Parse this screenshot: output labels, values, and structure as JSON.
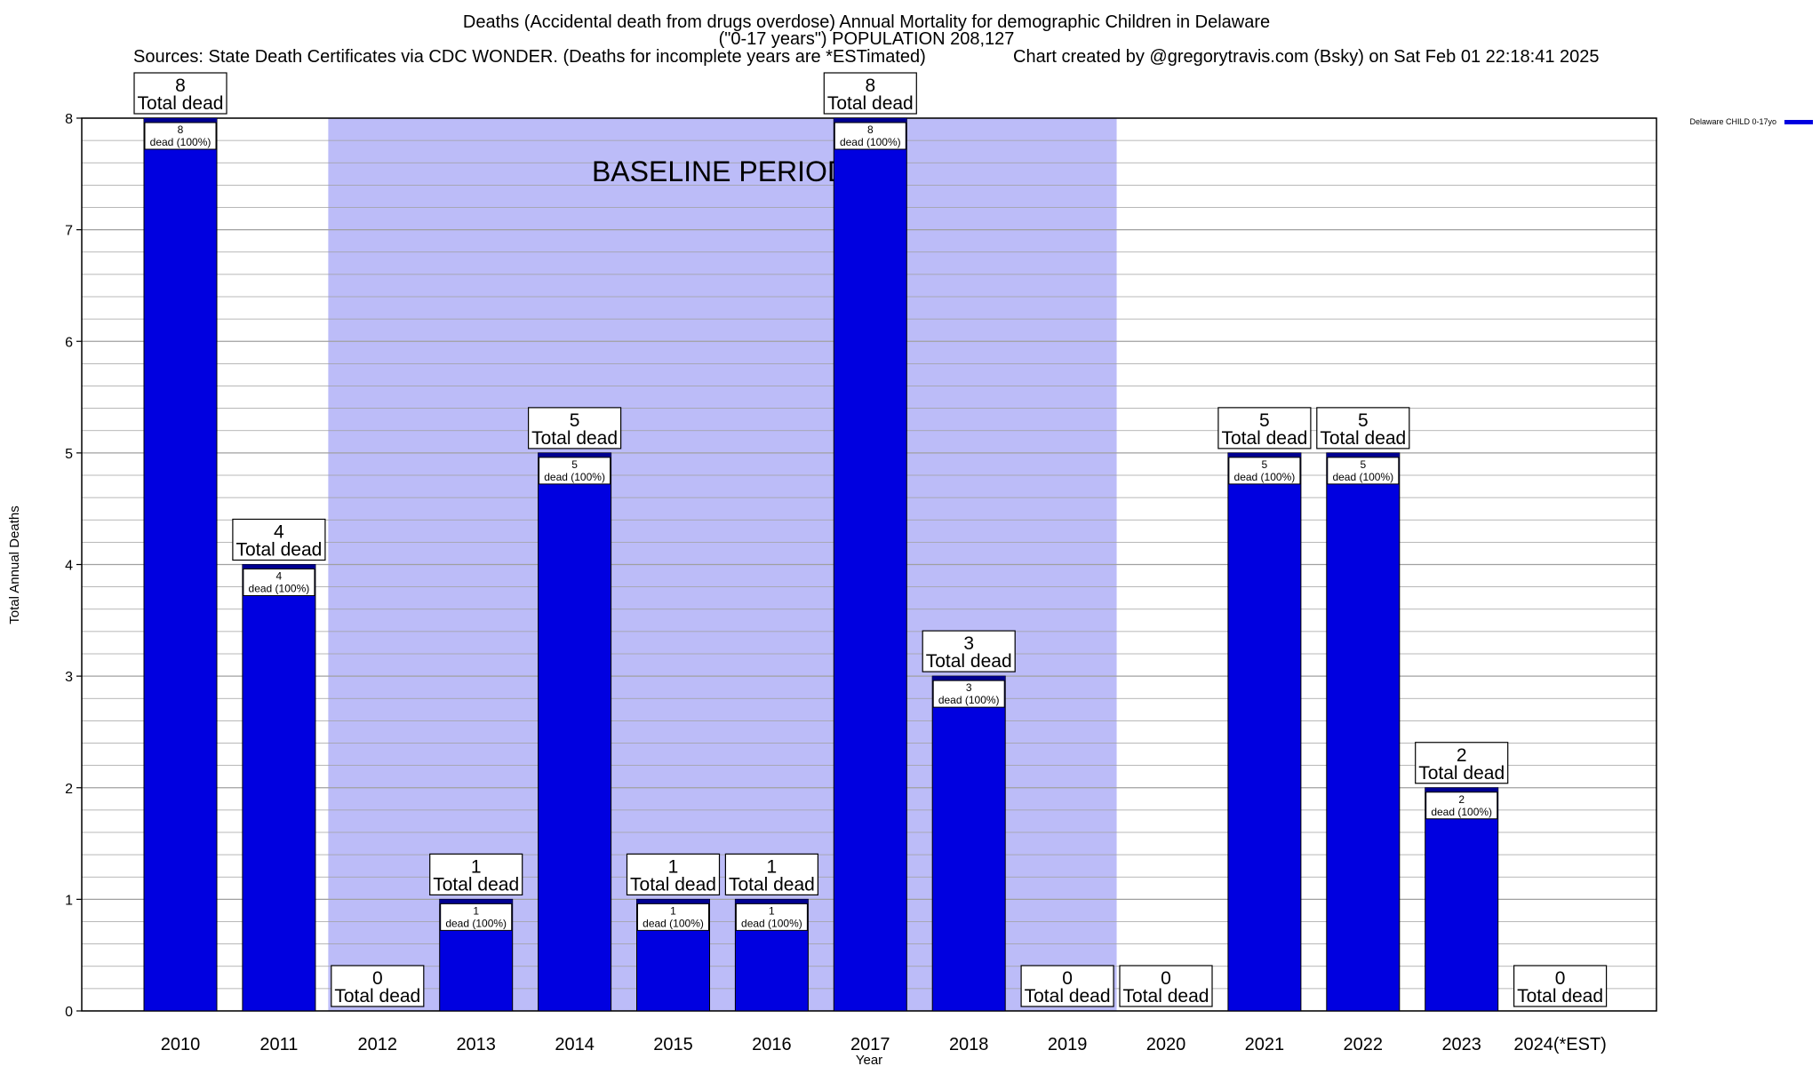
{
  "header": {
    "title_line1": "Deaths (Accidental death from drugs overdose) Annual Mortality for demographic Children in Delaware",
    "title_line2": "(\"0-17 years\") POPULATION 208,127",
    "sources": "Sources: State Death Certificates via CDC WONDER. (Deaths for incomplete years are *ESTimated)",
    "credit": "Chart created by @gregorytravis.com (Bsky) on Sat Feb 01 22:18:41 2025"
  },
  "colors": {
    "bar": "#0000e0",
    "bar_top": "#000090",
    "baseline_shade": "#bcbcf8",
    "grid": "#a0a0a0"
  },
  "chart_data": {
    "type": "bar",
    "title": "Deaths (Accidental death from drugs overdose) Annual Mortality for demographic Children in Delaware",
    "xlabel": "Year",
    "ylabel": "Total Annual Deaths",
    "ylim": [
      0,
      8
    ],
    "yticks": [
      0,
      1,
      2,
      3,
      4,
      5,
      6,
      7,
      8
    ],
    "grid": true,
    "categories": [
      "2010",
      "2011",
      "2012",
      "2013",
      "2014",
      "2015",
      "2016",
      "2017",
      "2018",
      "2019",
      "2020",
      "2021",
      "2022",
      "2023",
      "2024(*EST)"
    ],
    "series": [
      {
        "name": "Delaware CHILD 0-17yo",
        "values": [
          8,
          4,
          0,
          1,
          5,
          1,
          1,
          8,
          3,
          0,
          0,
          5,
          5,
          2,
          0
        ]
      }
    ],
    "total_label": "Total dead",
    "inner_label_suffix": "dead (100%)",
    "baseline": {
      "label": "BASELINE PERIOD",
      "start": "2012",
      "end": "2019"
    },
    "legend": {
      "position": "top-right",
      "entries": [
        "Delaware CHILD 0-17yo"
      ]
    }
  }
}
